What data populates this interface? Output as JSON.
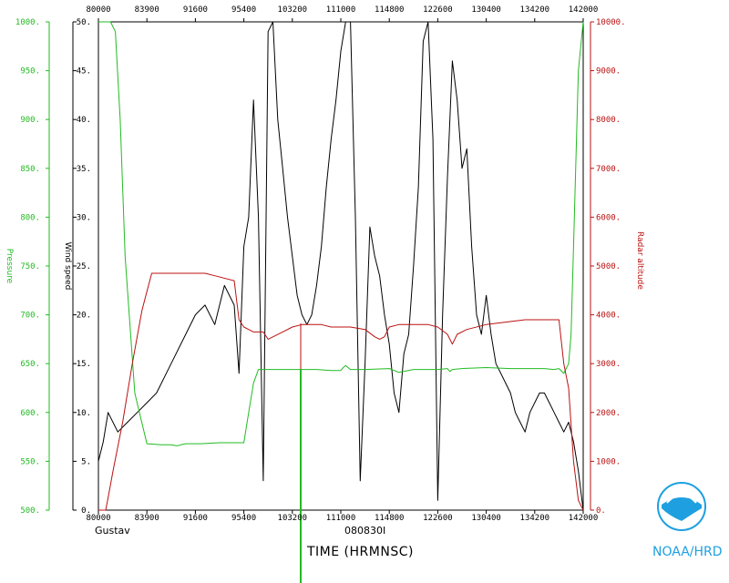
{
  "chart_data": {
    "type": "line",
    "storm": "Gustav",
    "date_label": "080830I",
    "xlabel": "TIME (HRMNSC)",
    "credit": "NOAA/HRD",
    "x_ticks": [
      "80000",
      "83900",
      "91600",
      "95400",
      "103200",
      "111000",
      "114800",
      "122600",
      "130400",
      "134200",
      "142000"
    ],
    "wind_ticks": [
      "0.",
      "5.",
      "10.",
      "15.",
      "20.",
      "25.",
      "30.",
      "35.",
      "40.",
      "45.",
      "50."
    ],
    "pressure_ticks": [
      "500.",
      "550.",
      "600.",
      "650.",
      "700.",
      "750.",
      "800.",
      "850.",
      "900.",
      "950.",
      "1000."
    ],
    "altitude_ticks": [
      "0.",
      "1000.",
      "2000.",
      "3000.",
      "4000.",
      "5000.",
      "6000.",
      "7000.",
      "8000.",
      "9000.",
      "10000."
    ],
    "ylabel_left_outer": "Pressure",
    "ylabel_left_inner": "Wind speed",
    "ylabel_right": "Radar altitude",
    "series": [
      {
        "name": "Wind speed",
        "axis": "wind",
        "color": "#000000",
        "x": [
          0,
          1,
          2,
          4,
          6,
          8,
          10,
          12,
          15,
          18,
          20,
          22,
          24,
          26,
          28,
          29,
          30,
          31,
          32,
          33,
          34,
          35,
          36,
          37,
          38,
          39,
          40,
          41,
          42,
          43,
          44,
          45,
          46,
          47,
          48,
          49,
          50,
          51,
          52,
          53,
          54,
          55,
          56,
          57,
          58,
          59,
          60,
          61,
          62,
          63,
          64,
          65,
          66,
          67,
          68,
          69,
          70,
          71,
          72,
          73,
          74,
          75,
          76,
          77,
          78,
          79,
          80,
          81,
          82,
          83,
          84,
          85,
          86,
          87,
          88,
          89,
          90,
          91,
          92,
          93,
          94,
          95,
          96,
          97,
          98,
          99,
          100
        ],
        "y": [
          5,
          7,
          10,
          8,
          9,
          10,
          11,
          12,
          15,
          18,
          20,
          21,
          19,
          23,
          21,
          14,
          27,
          30,
          42,
          30,
          3,
          49,
          52,
          40,
          35,
          30,
          26,
          22,
          20,
          19,
          20,
          23,
          27,
          33,
          38,
          42,
          47,
          52,
          52,
          30,
          3,
          15,
          29,
          26,
          24,
          20,
          17,
          12,
          10,
          16,
          18,
          25,
          33,
          48,
          50,
          38,
          1,
          20,
          34,
          46,
          42,
          35,
          37,
          27,
          20,
          18,
          22,
          18,
          15,
          14,
          13,
          12,
          10,
          9,
          8,
          10,
          11,
          12,
          12,
          11,
          10,
          9,
          8,
          9,
          7,
          4,
          0
        ]
      },
      {
        "name": "Pressure",
        "axis": "pressure",
        "color": "#22bb22",
        "x": [
          0,
          1.5,
          2.5,
          3.5,
          4.5,
          5.5,
          7.5,
          10,
          13,
          15,
          16,
          16.5,
          17,
          18,
          21,
          25,
          28,
          30,
          31,
          32,
          33,
          34,
          35,
          40,
          45,
          48,
          50,
          50.5,
          51,
          52,
          55,
          60,
          62,
          65,
          70,
          72,
          72.5,
          73,
          75,
          80,
          85,
          88,
          90,
          92,
          94,
          95,
          96,
          97,
          97.5,
          98,
          99,
          100
        ],
        "y": [
          1000,
          1000,
          1000,
          990,
          900,
          760,
          620,
          568,
          567,
          567,
          566,
          566,
          567,
          568,
          568,
          569,
          569,
          569,
          600,
          630,
          644,
          644,
          644,
          644,
          644,
          643,
          643,
          646,
          648,
          644,
          644,
          645,
          641,
          644,
          644,
          645,
          642,
          644,
          645,
          646,
          645,
          645,
          645,
          645,
          644,
          645,
          640,
          650,
          680,
          770,
          950,
          1000
        ]
      },
      {
        "name": "Radar altitude",
        "axis": "altitude",
        "color": "#bb1111",
        "x": [
          0,
          1,
          1.5,
          2,
          3,
          5,
          7,
          9,
          11,
          12,
          15,
          18,
          20,
          22,
          24,
          28,
          29,
          30,
          31,
          32,
          33,
          34,
          35,
          38,
          40,
          42,
          45,
          46,
          48,
          50,
          52,
          55,
          57,
          58,
          59,
          60,
          62,
          65,
          68,
          70,
          72,
          73,
          74,
          76,
          80,
          84,
          88,
          90,
          92,
          94,
          95,
          96,
          97,
          98,
          99,
          100
        ],
        "y": [
          0,
          0,
          0,
          250,
          800,
          1800,
          3000,
          4100,
          4850,
          4850,
          4850,
          4850,
          4850,
          4850,
          4800,
          4700,
          3900,
          3750,
          3700,
          3650,
          3650,
          3650,
          3500,
          3650,
          3750,
          3800,
          3800,
          3800,
          3750,
          3750,
          3750,
          3700,
          3550,
          3500,
          3550,
          3750,
          3800,
          3800,
          3800,
          3750,
          3600,
          3400,
          3600,
          3700,
          3800,
          3850,
          3900,
          3900,
          3900,
          3900,
          3900,
          3000,
          2500,
          1000,
          200,
          0
        ]
      }
    ],
    "colors": {
      "wind": "#000000",
      "pressure": "#22bb22",
      "altitude": "#bb1111",
      "credit": "#1ea0e0"
    }
  }
}
